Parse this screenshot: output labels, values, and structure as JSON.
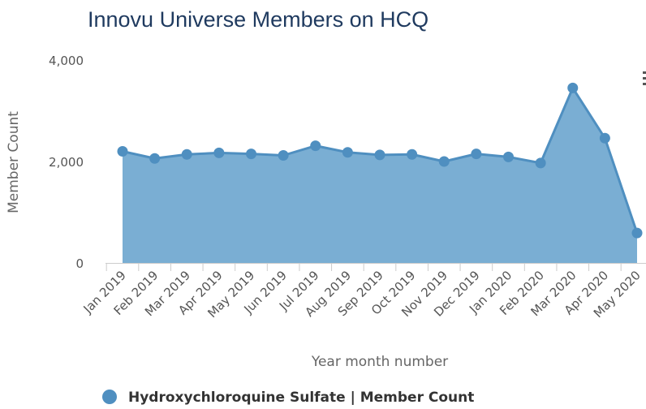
{
  "chart_data": {
    "type": "area",
    "title": "Innovu Universe Members on HCQ",
    "xlabel": "Year month number",
    "ylabel": "Member Count",
    "ylim": [
      0,
      4000
    ],
    "yticks": [
      "0",
      "2,000",
      "4,000"
    ],
    "ytick_values": [
      0,
      2000,
      4000
    ],
    "grid": false,
    "legend_position": "bottom-left",
    "categories": [
      "Jan 2019",
      "Feb 2019",
      "Mar 2019",
      "Apr 2019",
      "May 2019",
      "Jun 2019",
      "Jul 2019",
      "Aug 2019",
      "Sep 2019",
      "Oct 2019",
      "Nov 2019",
      "Dec 2019",
      "Jan 2020",
      "Feb 2020",
      "Mar 2020",
      "Apr 2020",
      "May 2020"
    ],
    "series": [
      {
        "name": "Hydroxychloroquine Sulfate | Member Count",
        "color": "#4f8fc0",
        "fill": "#7aaed3",
        "values": [
          2200,
          2060,
          2140,
          2170,
          2150,
          2120,
          2310,
          2180,
          2130,
          2140,
          2000,
          2150,
          2090,
          1970,
          3450,
          2460,
          590
        ]
      }
    ]
  }
}
